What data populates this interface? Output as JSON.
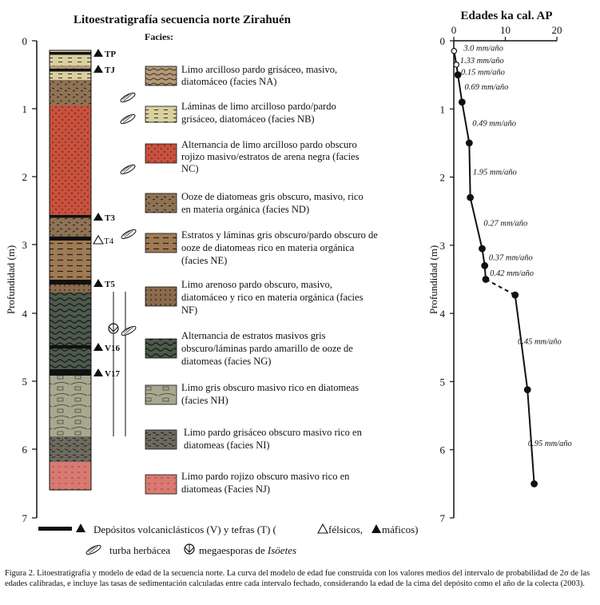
{
  "figure": {
    "strat_title": "Litoestratigrafía secuencia norte Zirahuén",
    "age_title": "Edades ka cal. AP",
    "facies_heading": "Facies:",
    "depth_label": "Profundidad (m)",
    "depth_ticks": [
      "0",
      "1",
      "2",
      "3",
      "4",
      "5",
      "6",
      "7"
    ],
    "age_ticks": [
      "0",
      "10",
      "20"
    ],
    "tephra_labels": [
      "TP",
      "TJ",
      "T3",
      "T4",
      "T5",
      "V16",
      "V17"
    ],
    "facies": [
      {
        "code": "NA",
        "lines": [
          "Limo arcilloso pardo grisáceo, masivo,",
          "diatomáceo (facies NA)"
        ],
        "color": "#b39a78"
      },
      {
        "code": "NB",
        "lines": [
          "Láminas de limo arcilloso pardo/pardo",
          "grisáceo, diatomáceo (facies NB)"
        ],
        "color": "#d8d0a0"
      },
      {
        "code": "NC",
        "lines": [
          "Alternancia de limo arcilloso pardo obscuro",
          "rojizo masivo/estratos de arena negra  (facies",
          "NC)"
        ],
        "color": "#c8523e"
      },
      {
        "code": "ND",
        "lines": [
          "Ooze de diatomeas gris obscuro, masivo, rico",
          "en materia orgánica (facies ND)"
        ],
        "color": "#8e7355"
      },
      {
        "code": "NE",
        "lines": [
          "Estratos y láminas gris obscuro/pardo obscuro de",
          "ooze de diatomeas rico en materia orgánica",
          "(facies NE)"
        ],
        "color": "#9e7a55"
      },
      {
        "code": "NF",
        "lines": [
          "Limo arenoso pardo obscuro, masivo,",
          "diatomáceo y rico en materia orgánica (facies",
          "NF)"
        ],
        "color": "#8a6b4c"
      },
      {
        "code": "NG",
        "lines": [
          "Alternancia de estratos masivos gris",
          "obscuro/láminas pardo amarillo de ooze de",
          "diatomeas (facies NG)"
        ],
        "color": "#4d5a4d"
      },
      {
        "code": "NH",
        "lines": [
          "Limo gris obscuro masivo rico en diatomeas",
          "(facies NH)"
        ],
        "color": "#a8a890"
      },
      {
        "code": "NI",
        "lines": [
          "Limo pardo grisáceo obscuro masivo rico en",
          "diatomeas (facies NI)"
        ],
        "color": "#6d6a60"
      },
      {
        "code": "NJ",
        "lines": [
          "Limo pardo rojizo obscuro masivo rico en",
          "diatomeas (Facies NJ)"
        ],
        "color": "#d97a72"
      }
    ],
    "legend": {
      "volcanic": "Depósitos volcaniclásticos (V) y tefras (T) (",
      "felsic": "félsicos,",
      "mafic": "máficos)",
      "peat": "turba herbácea",
      "megaspores_prefix": "megaesporas de ",
      "megaspores_italic": "Isöetes"
    },
    "caption": "Figura 2. Litoestratigrafía y modelo de edad de la secuencia norte. La curva del modelo de edad fue construida con los valores medios del intervalo de probabilidad de 2σ de las edades calibradas, e incluye las tasas de sedimentación calculadas entre cada intervalo fechado, considerando la edad de la cima del depósito como el año de la colecta (2003).",
    "colors": {
      "background": "#ffffff",
      "ink": "#111111"
    }
  },
  "chart_data": {
    "type": "line",
    "title": "Edades ka cal. AP",
    "xlabel": "Edades ka cal. AP",
    "ylabel": "Profundidad (m)",
    "xlim": [
      0,
      20
    ],
    "ylim": [
      0,
      7
    ],
    "y_inverted": true,
    "x_ticks": [
      0,
      10,
      20
    ],
    "y_ticks": [
      0,
      1,
      2,
      3,
      4,
      5,
      6,
      7
    ],
    "series": [
      {
        "points": [
          {
            "x": 0.05,
            "y": 0.15
          },
          {
            "x": 0.5,
            "y": 0.35
          },
          {
            "x": 0.8,
            "y": 0.5
          },
          {
            "x": 1.6,
            "y": 0.9
          },
          {
            "x": 3.0,
            "y": 1.5
          },
          {
            "x": 3.2,
            "y": 2.3
          },
          {
            "x": 5.5,
            "y": 3.05
          },
          {
            "x": 6.0,
            "y": 3.3
          },
          {
            "x": 6.2,
            "y": 3.5
          },
          {
            "x": 11.9,
            "y": 3.73
          },
          {
            "x": 14.3,
            "y": 5.12
          },
          {
            "x": 15.6,
            "y": 6.5
          }
        ],
        "point_style": [
          "open",
          "open",
          "filled",
          "filled",
          "filled",
          "filled",
          "filled",
          "filled",
          "filled",
          "filled",
          "filled",
          "filled"
        ],
        "segment_style": [
          "solid",
          "solid",
          "solid",
          "solid",
          "solid",
          "solid",
          "solid",
          "solid",
          "dashed",
          "solid",
          "solid"
        ]
      }
    ],
    "annotations": [
      {
        "text": "3.0 mm/año",
        "x": 1.9,
        "y": 0.1
      },
      {
        "text": "1.33 mm/año",
        "x": 1.2,
        "y": 0.28
      },
      {
        "text": "0.15 mm/año",
        "x": 1.4,
        "y": 0.45
      },
      {
        "text": "0.69 mm/año",
        "x": 2.1,
        "y": 0.67
      },
      {
        "text": "0.49 mm/año",
        "x": 3.6,
        "y": 1.2
      },
      {
        "text": "1.95 mm/año",
        "x": 3.7,
        "y": 1.92
      },
      {
        "text": "0.27 mm/año",
        "x": 5.8,
        "y": 2.67
      },
      {
        "text": "0.37 mm/año",
        "x": 6.8,
        "y": 3.17
      },
      {
        "text": "0.42 mm/año",
        "x": 7.0,
        "y": 3.4
      },
      {
        "text": "0.45 mm/año",
        "x": 12.4,
        "y": 4.4
      },
      {
        "text": "0.95 mm/año",
        "x": 14.4,
        "y": 5.9
      }
    ]
  }
}
